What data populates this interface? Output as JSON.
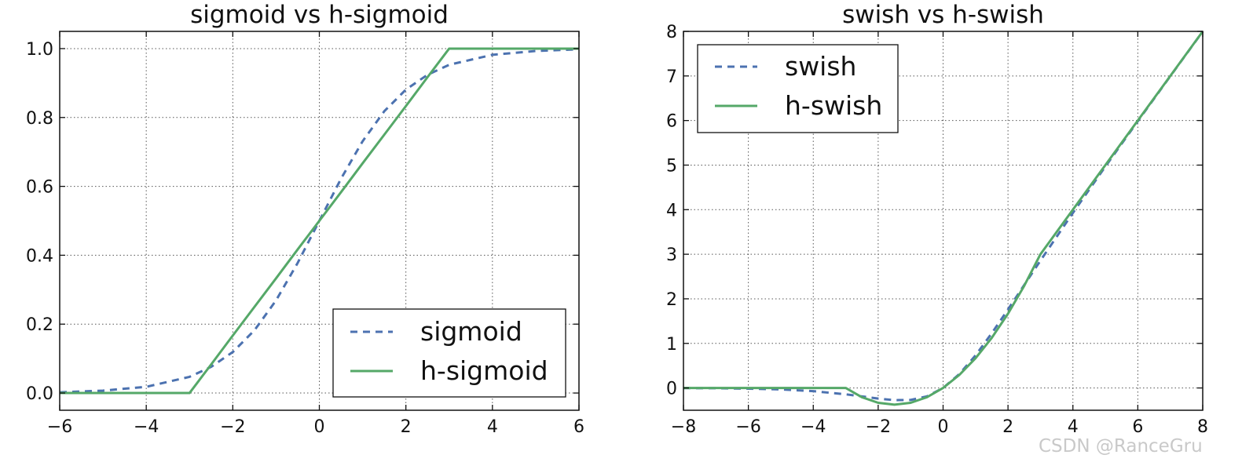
{
  "chart_data": [
    {
      "type": "line",
      "title": "sigmoid vs h-sigmoid",
      "xlabel": "",
      "ylabel": "",
      "xlim": [
        -6,
        6
      ],
      "ylim": [
        -0.05,
        1.05
      ],
      "xticks": [
        -6,
        -4,
        -2,
        0,
        2,
        4,
        6
      ],
      "xtick_labels": [
        "−6",
        "−4",
        "−2",
        "0",
        "2",
        "4",
        "6"
      ],
      "yticks": [
        0.0,
        0.2,
        0.4,
        0.6,
        0.8,
        1.0
      ],
      "ytick_labels": [
        "0.0",
        "0.2",
        "0.4",
        "0.6",
        "0.8",
        "1.0"
      ],
      "grid": true,
      "legend_position": "lower-right",
      "x": [
        -6,
        -5,
        -4,
        -3,
        -2.5,
        -2,
        -1.5,
        -1,
        -0.5,
        0,
        0.5,
        1,
        1.5,
        2,
        2.5,
        3,
        4,
        5,
        6
      ],
      "series": [
        {
          "name": "sigmoid",
          "style": "dashed",
          "color": "#4c72b0",
          "values": [
            0.002,
            0.007,
            0.018,
            0.047,
            0.076,
            0.119,
            0.182,
            0.269,
            0.378,
            0.5,
            0.622,
            0.731,
            0.818,
            0.881,
            0.924,
            0.953,
            0.982,
            0.993,
            0.998
          ]
        },
        {
          "name": "h-sigmoid",
          "style": "solid",
          "color": "#55a868",
          "values": [
            0,
            0,
            0,
            0,
            0.083,
            0.167,
            0.25,
            0.333,
            0.417,
            0.5,
            0.583,
            0.667,
            0.75,
            0.833,
            0.917,
            1,
            1,
            1,
            1
          ]
        }
      ]
    },
    {
      "type": "line",
      "title": "swish vs h-swish",
      "xlabel": "",
      "ylabel": "",
      "xlim": [
        -8,
        8
      ],
      "ylim": [
        -0.5,
        8
      ],
      "xticks": [
        -8,
        -6,
        -4,
        -2,
        0,
        2,
        4,
        6,
        8
      ],
      "xtick_labels": [
        "−8",
        "−6",
        "−4",
        "−2",
        "0",
        "2",
        "4",
        "6",
        "8"
      ],
      "yticks": [
        0,
        1,
        2,
        3,
        4,
        5,
        6,
        7,
        8
      ],
      "ytick_labels": [
        "0",
        "1",
        "2",
        "3",
        "4",
        "5",
        "6",
        "7",
        "8"
      ],
      "grid": true,
      "legend_position": "upper-left",
      "x": [
        -8,
        -7,
        -6,
        -5,
        -4,
        -3,
        -2.5,
        -2,
        -1.5,
        -1,
        -0.5,
        0,
        0.5,
        1,
        1.5,
        2,
        2.5,
        3,
        4,
        5,
        6,
        7,
        8
      ],
      "series": [
        {
          "name": "swish",
          "style": "dashed",
          "color": "#4c72b0",
          "values": [
            -0.003,
            -0.006,
            -0.015,
            -0.033,
            -0.072,
            -0.142,
            -0.189,
            -0.238,
            -0.273,
            -0.269,
            -0.189,
            0,
            0.311,
            0.731,
            1.227,
            1.762,
            2.311,
            2.858,
            3.928,
            4.967,
            5.985,
            6.994,
            7.997
          ]
        },
        {
          "name": "h-swish",
          "style": "solid",
          "color": "#55a868",
          "values": [
            0,
            0,
            0,
            0,
            0,
            0,
            -0.208,
            -0.333,
            -0.375,
            -0.333,
            -0.208,
            0,
            0.292,
            0.667,
            1.125,
            1.667,
            2.292,
            3,
            4,
            5,
            6,
            7,
            8
          ]
        }
      ]
    }
  ],
  "watermark": "CSDN @RanceGru"
}
